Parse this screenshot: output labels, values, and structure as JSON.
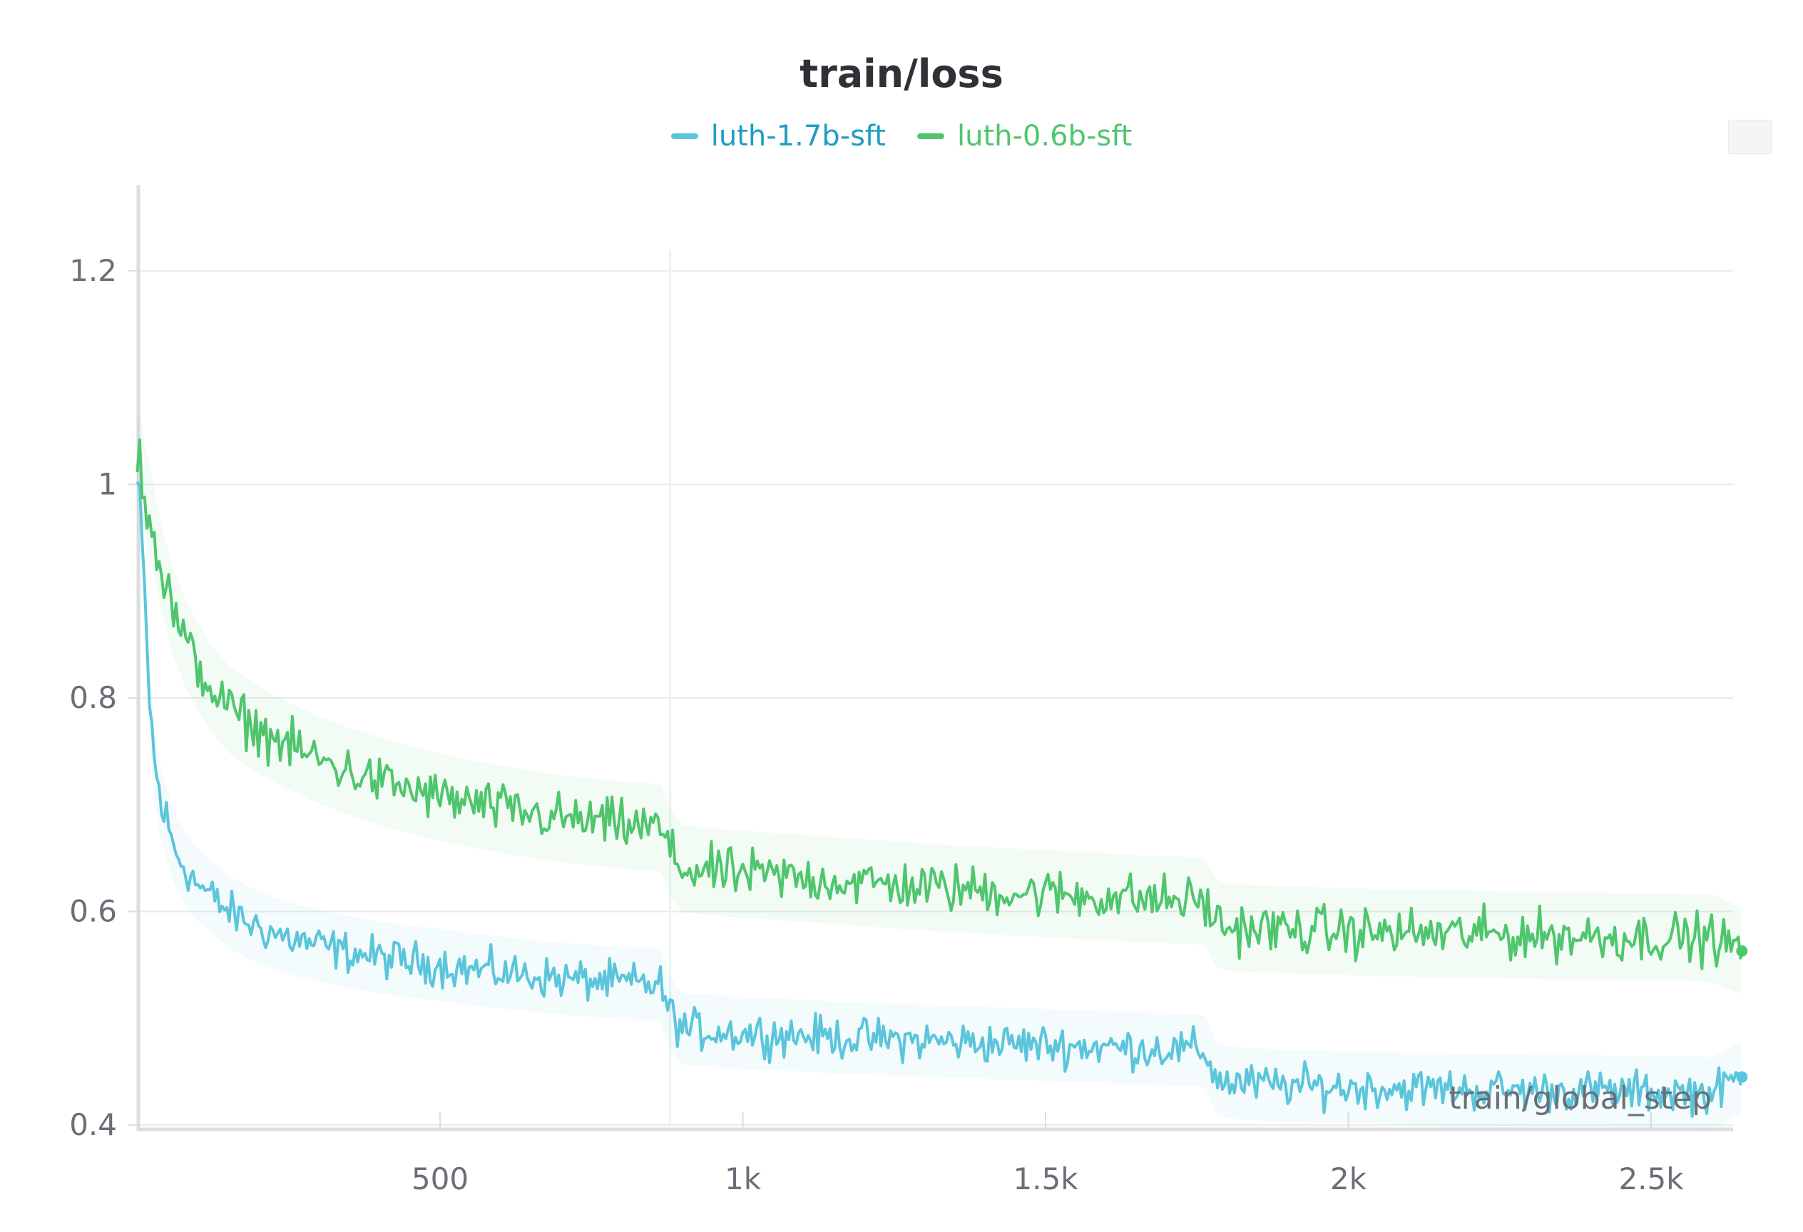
{
  "chart_data": {
    "type": "line",
    "title": "train/loss",
    "xlabel": "train/global_step",
    "ylabel": "",
    "xlim": [
      0,
      2650
    ],
    "ylim": [
      0.4,
      1.28
    ],
    "xticks": [
      500,
      1000,
      1500,
      2000,
      2500
    ],
    "xtick_labels": [
      "500",
      "1k",
      "1.5k",
      "2k",
      "2.5k"
    ],
    "yticks": [
      0.4,
      0.6,
      0.8,
      1.0,
      1.2
    ],
    "ytick_labels": [
      "0.4",
      "0.6",
      "0.8",
      "1",
      "1.2"
    ],
    "grid": true,
    "legend_position": "top-center",
    "series": [
      {
        "name": "luth-1.7b-sft",
        "color": "#5bc5db",
        "x": [
          0,
          5,
          10,
          15,
          20,
          25,
          30,
          40,
          50,
          60,
          70,
          80,
          100,
          120,
          150,
          200,
          250,
          300,
          350,
          400,
          450,
          500,
          550,
          600,
          650,
          700,
          750,
          800,
          850,
          865,
          880,
          900,
          950,
          1000,
          1050,
          1100,
          1150,
          1200,
          1250,
          1300,
          1350,
          1400,
          1450,
          1500,
          1550,
          1600,
          1650,
          1700,
          1750,
          1765,
          1780,
          1800,
          1850,
          1900,
          1950,
          2000,
          2050,
          2100,
          2150,
          2200,
          2250,
          2300,
          2350,
          2400,
          2450,
          2500,
          2550,
          2600,
          2650
        ],
        "y": [
          1.0,
          0.97,
          0.92,
          0.86,
          0.8,
          0.76,
          0.73,
          0.7,
          0.68,
          0.66,
          0.65,
          0.64,
          0.625,
          0.615,
          0.6,
          0.585,
          0.575,
          0.568,
          0.562,
          0.557,
          0.553,
          0.55,
          0.546,
          0.543,
          0.54,
          0.537,
          0.535,
          0.533,
          0.532,
          0.53,
          0.505,
          0.49,
          0.488,
          0.486,
          0.485,
          0.484,
          0.482,
          0.481,
          0.48,
          0.479,
          0.478,
          0.477,
          0.476,
          0.475,
          0.474,
          0.473,
          0.472,
          0.471,
          0.47,
          0.468,
          0.445,
          0.44,
          0.438,
          0.437,
          0.436,
          0.435,
          0.435,
          0.434,
          0.434,
          0.433,
          0.433,
          0.432,
          0.432,
          0.432,
          0.431,
          0.431,
          0.431,
          0.43,
          0.445
        ]
      },
      {
        "name": "luth-0.6b-sft",
        "color": "#4fc66d",
        "x": [
          0,
          5,
          10,
          20,
          30,
          40,
          50,
          60,
          80,
          100,
          120,
          150,
          200,
          250,
          300,
          350,
          400,
          450,
          500,
          550,
          600,
          650,
          700,
          750,
          800,
          850,
          865,
          880,
          900,
          950,
          1000,
          1050,
          1100,
          1150,
          1200,
          1250,
          1300,
          1350,
          1400,
          1450,
          1500,
          1550,
          1600,
          1650,
          1700,
          1750,
          1765,
          1780,
          1800,
          1850,
          1900,
          1950,
          2000,
          2050,
          2100,
          2150,
          2200,
          2250,
          2300,
          2350,
          2400,
          2450,
          2500,
          2550,
          2600,
          2650
        ],
        "y": [
          1.02,
          1.03,
          1.0,
          0.98,
          0.95,
          0.92,
          0.9,
          0.88,
          0.85,
          0.83,
          0.81,
          0.79,
          0.77,
          0.755,
          0.742,
          0.731,
          0.722,
          0.714,
          0.707,
          0.701,
          0.696,
          0.691,
          0.687,
          0.684,
          0.681,
          0.679,
          0.678,
          0.655,
          0.64,
          0.637,
          0.635,
          0.633,
          0.631,
          0.629,
          0.627,
          0.625,
          0.623,
          0.621,
          0.62,
          0.618,
          0.617,
          0.615,
          0.614,
          0.612,
          0.611,
          0.61,
          0.608,
          0.59,
          0.585,
          0.584,
          0.583,
          0.582,
          0.581,
          0.58,
          0.58,
          0.579,
          0.579,
          0.578,
          0.578,
          0.577,
          0.577,
          0.576,
          0.576,
          0.576,
          0.575,
          0.563
        ]
      }
    ]
  }
}
